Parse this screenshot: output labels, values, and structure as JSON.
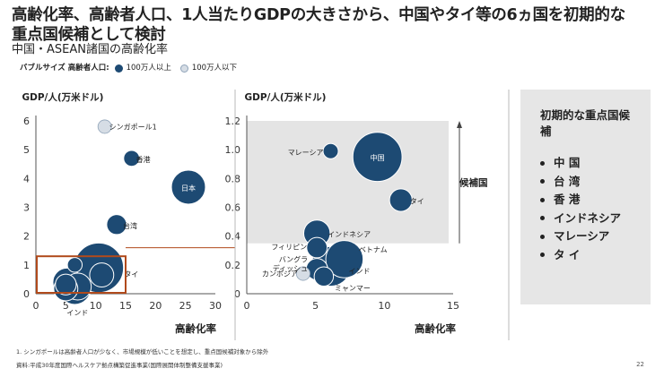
{
  "title": "高齢化率、高齢者人口、1人当たりGDPの大きさから、中国やタイ等の6ヵ国を初期的な重点国候補として検討",
  "subtitle": "中国・ASEAN諸国の高齢化率",
  "legend": {
    "label": "バブルサイズ 高齢者人口:",
    "large": "100万人以上",
    "small": "100万人以下"
  },
  "colors": {
    "large": "#1d4a73",
    "small": "#d6dde5",
    "highlight": "#e4e4e4",
    "box": "#b04a1c"
  },
  "panel": {
    "title": "初期的な重点国候補",
    "items": [
      "中 国",
      "台 湾",
      "香 港",
      "インドネシア",
      "マレーシア",
      "タ イ"
    ]
  },
  "footnote": "1.  シンガポールは高齢者人口が少なく、市場規模が低いことを想定し、重点国候補対象から除外",
  "source": "資料:平成30年度国際ヘルスケア拠点構築促進事業(国際展開体制整備支援事業)",
  "page_number": "22",
  "chart_data": [
    {
      "type": "scatter",
      "ylabel": "GDP/人(万米ドル)",
      "xlabel": "高齢化率",
      "xlim": [
        0,
        30
      ],
      "ylim": [
        0,
        6
      ],
      "xticks": [
        "0",
        "5",
        "10",
        "15",
        "20",
        "25",
        "30"
      ],
      "yticks": [
        "0",
        "1",
        "2",
        "3",
        "4",
        "5",
        "6"
      ],
      "zoom_box": {
        "x": [
          0,
          15
        ],
        "y": [
          0,
          1.3
        ]
      },
      "points": [
        {
          "name": "シンガポール",
          "label": "シンガポール1",
          "x": 11.5,
          "y": 5.8,
          "size": 0.25,
          "large": false
        },
        {
          "name": "香港",
          "label": "香港",
          "x": 16,
          "y": 4.7,
          "size": 0.35,
          "large": true
        },
        {
          "name": "日本",
          "label": "日本",
          "x": 25.5,
          "y": 3.7,
          "size": 1.6,
          "large": true
        },
        {
          "name": "台湾",
          "label": "台湾",
          "x": 13.5,
          "y": 2.4,
          "size": 0.55,
          "large": true
        },
        {
          "name": "中国",
          "label": "中国",
          "x": 10.5,
          "y": 0.9,
          "size": 3.4,
          "large": true
        },
        {
          "name": "マレーシア",
          "label": "マレーシア",
          "x": 6.5,
          "y": 1.0,
          "size": 0.3,
          "large": true
        },
        {
          "name": "タイ",
          "label": "タイ",
          "x": 11,
          "y": 0.65,
          "size": 0.8,
          "large": true
        },
        {
          "name": "インドネシア",
          "x": 5.2,
          "y": 0.4,
          "size": 1.1,
          "large": true
        },
        {
          "name": "ベトナム",
          "x": 7,
          "y": 0.25,
          "size": 1.0,
          "large": true
        },
        {
          "name": "インド",
          "label": "インド",
          "x": 6.5,
          "y": 0.18,
          "size": 1.4,
          "large": true
        },
        {
          "name": "フィリピン",
          "x": 5,
          "y": 0.32,
          "size": 0.6,
          "large": true
        },
        {
          "name": "バングラディッシュ",
          "x": 5,
          "y": 0.17,
          "size": 0.8,
          "large": true
        }
      ]
    },
    {
      "type": "scatter",
      "ylabel": "GDP/人(万米ドル)",
      "xlabel": "高齢化率",
      "xlim": [
        0,
        15
      ],
      "ylim": [
        0,
        1.2
      ],
      "xticks": [
        "0",
        "5",
        "10",
        "15"
      ],
      "yticks": [
        "0",
        "0.2",
        "0.4",
        "0.6",
        "0.8",
        "1.0",
        "1.2"
      ],
      "highlight_label": "候補国",
      "highlight_y": [
        0.35,
        1.2
      ],
      "points": [
        {
          "name": "中国",
          "label": "中国",
          "x": 9.5,
          "y": 0.95,
          "size": 2.6,
          "large": true
        },
        {
          "name": "マレーシア",
          "label": "マレーシア",
          "x": 6.1,
          "y": 0.99,
          "size": 0.25,
          "large": true
        },
        {
          "name": "タイ",
          "label": "タイ",
          "x": 11.2,
          "y": 0.65,
          "size": 0.55,
          "large": true
        },
        {
          "name": "インドネシア",
          "label": "インドネシア",
          "x": 5.1,
          "y": 0.42,
          "size": 0.75,
          "large": true
        },
        {
          "name": "フィリピン",
          "label": "フィリピン",
          "x": 5.1,
          "y": 0.32,
          "size": 0.45,
          "large": true
        },
        {
          "name": "ベトナム",
          "label": "ベトナム",
          "x": 7.1,
          "y": 0.24,
          "size": 1.5,
          "large": true
        },
        {
          "name": "バングラディッシュ",
          "label": "バングラディッシュ",
          "x": 5.1,
          "y": 0.17,
          "size": 0.5,
          "large": true
        },
        {
          "name": "インド",
          "label": "インド",
          "x": 6.1,
          "y": 0.19,
          "size": 1.7,
          "large": true
        },
        {
          "name": "カンボジア",
          "label": "カンボジア",
          "x": 4.1,
          "y": 0.14,
          "size": 0.2,
          "large": false
        },
        {
          "name": "ミャンマー",
          "label": "ミャンマー",
          "x": 5.6,
          "y": 0.12,
          "size": 0.4,
          "large": true
        }
      ]
    }
  ]
}
